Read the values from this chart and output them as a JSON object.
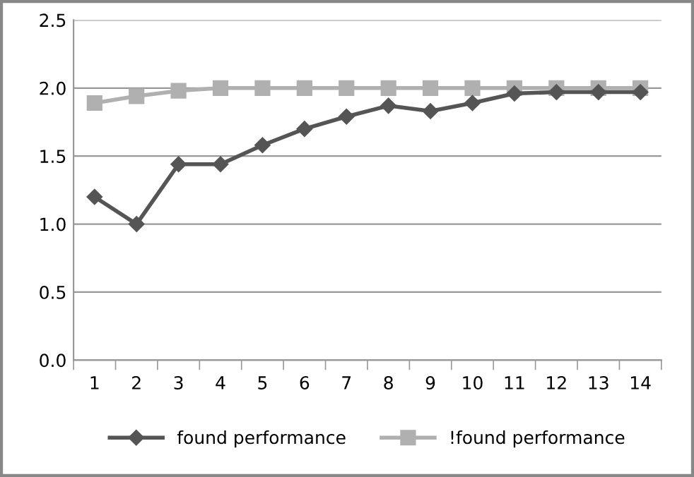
{
  "chart_data": {
    "type": "line",
    "categories": [
      "1",
      "2",
      "3",
      "4",
      "5",
      "6",
      "7",
      "8",
      "9",
      "10",
      "11",
      "12",
      "13",
      "14"
    ],
    "series": [
      {
        "name": "found performance",
        "color": "#555555",
        "marker": "diamond",
        "values": [
          1.2,
          1.0,
          1.44,
          1.44,
          1.58,
          1.7,
          1.79,
          1.87,
          1.83,
          1.89,
          1.96,
          1.97,
          1.97,
          1.97
        ]
      },
      {
        "name": "!found performance",
        "color": "#b0b0b0",
        "marker": "square",
        "values": [
          1.89,
          1.94,
          1.98,
          2.0,
          2.0,
          2.0,
          2.0,
          2.0,
          2.0,
          2.0,
          2.0,
          2.0,
          2.0,
          2.0
        ]
      }
    ],
    "ylim": [
      0,
      2.5
    ],
    "yticks": [
      {
        "value": 0,
        "label": "0.0"
      },
      {
        "value": 0.5,
        "label": "0.5"
      },
      {
        "value": 1,
        "label": "1.0"
      },
      {
        "value": 1.5,
        "label": "1.5"
      },
      {
        "value": 2,
        "label": "2.0"
      },
      {
        "value": 2.5,
        "label": "2.5"
      }
    ],
    "grid": "y",
    "legend": "bottom"
  }
}
